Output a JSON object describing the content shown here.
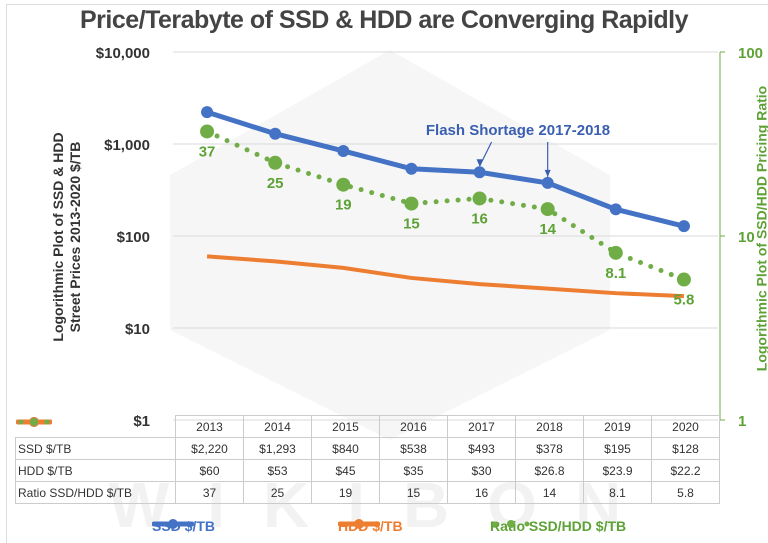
{
  "chart_data": {
    "type": "line",
    "title": "Price/Terabyte of SSD & HDD are Converging Rapidly",
    "ylabel": [
      "Logorithmic Plot of SSD & HDD",
      "Street Prices 2013-2020 $/TB"
    ],
    "y2label": "Logorithmic Plot of SSD/HDD Pricing Ratio",
    "categories": [
      "2013",
      "2014",
      "2015",
      "2016",
      "2017",
      "2018",
      "2019",
      "2020"
    ],
    "y_scale": "log",
    "ylim": [
      1,
      10000
    ],
    "y_ticks": [
      "$1",
      "$10",
      "$100",
      "$1,000",
      "$10,000"
    ],
    "y2_scale": "log",
    "y2lim": [
      1,
      100
    ],
    "y2_ticks": [
      "1",
      "10",
      "100"
    ],
    "grid": true,
    "legend_placement": "bottom",
    "annotation": "Flash Shortage 2017-2018",
    "annotation_points": [
      "2017",
      "2018"
    ],
    "series": [
      {
        "name": "SSD $/TB",
        "axis": "left",
        "color": "#4472c4",
        "style": "solid",
        "values": [
          2220,
          1293,
          840,
          538,
          493,
          378,
          195,
          128
        ],
        "labels": [
          "$2,220",
          "$1,293",
          "$840",
          "$538",
          "$493",
          "$378",
          "$195",
          "$128"
        ]
      },
      {
        "name": "HDD $/TB",
        "axis": "left",
        "color": "#ed7d31",
        "style": "solid",
        "values": [
          60,
          53,
          45,
          35,
          30,
          26.8,
          23.9,
          22.2
        ],
        "labels": [
          "$60",
          "$53",
          "$45",
          "$35",
          "$30",
          "$26.8",
          "$23.9",
          "$22.2"
        ]
      },
      {
        "name": "Ratio SSD/HDD $/TB",
        "axis": "right",
        "color": "#70ad47",
        "style": "dotted",
        "values": [
          37,
          25,
          19,
          15,
          16,
          14,
          8.1,
          5.8
        ],
        "labels": [
          "37",
          "25",
          "19",
          "15",
          "16",
          "14",
          "8.1",
          "5.8"
        ]
      }
    ]
  },
  "watermark": "WIKIBON"
}
